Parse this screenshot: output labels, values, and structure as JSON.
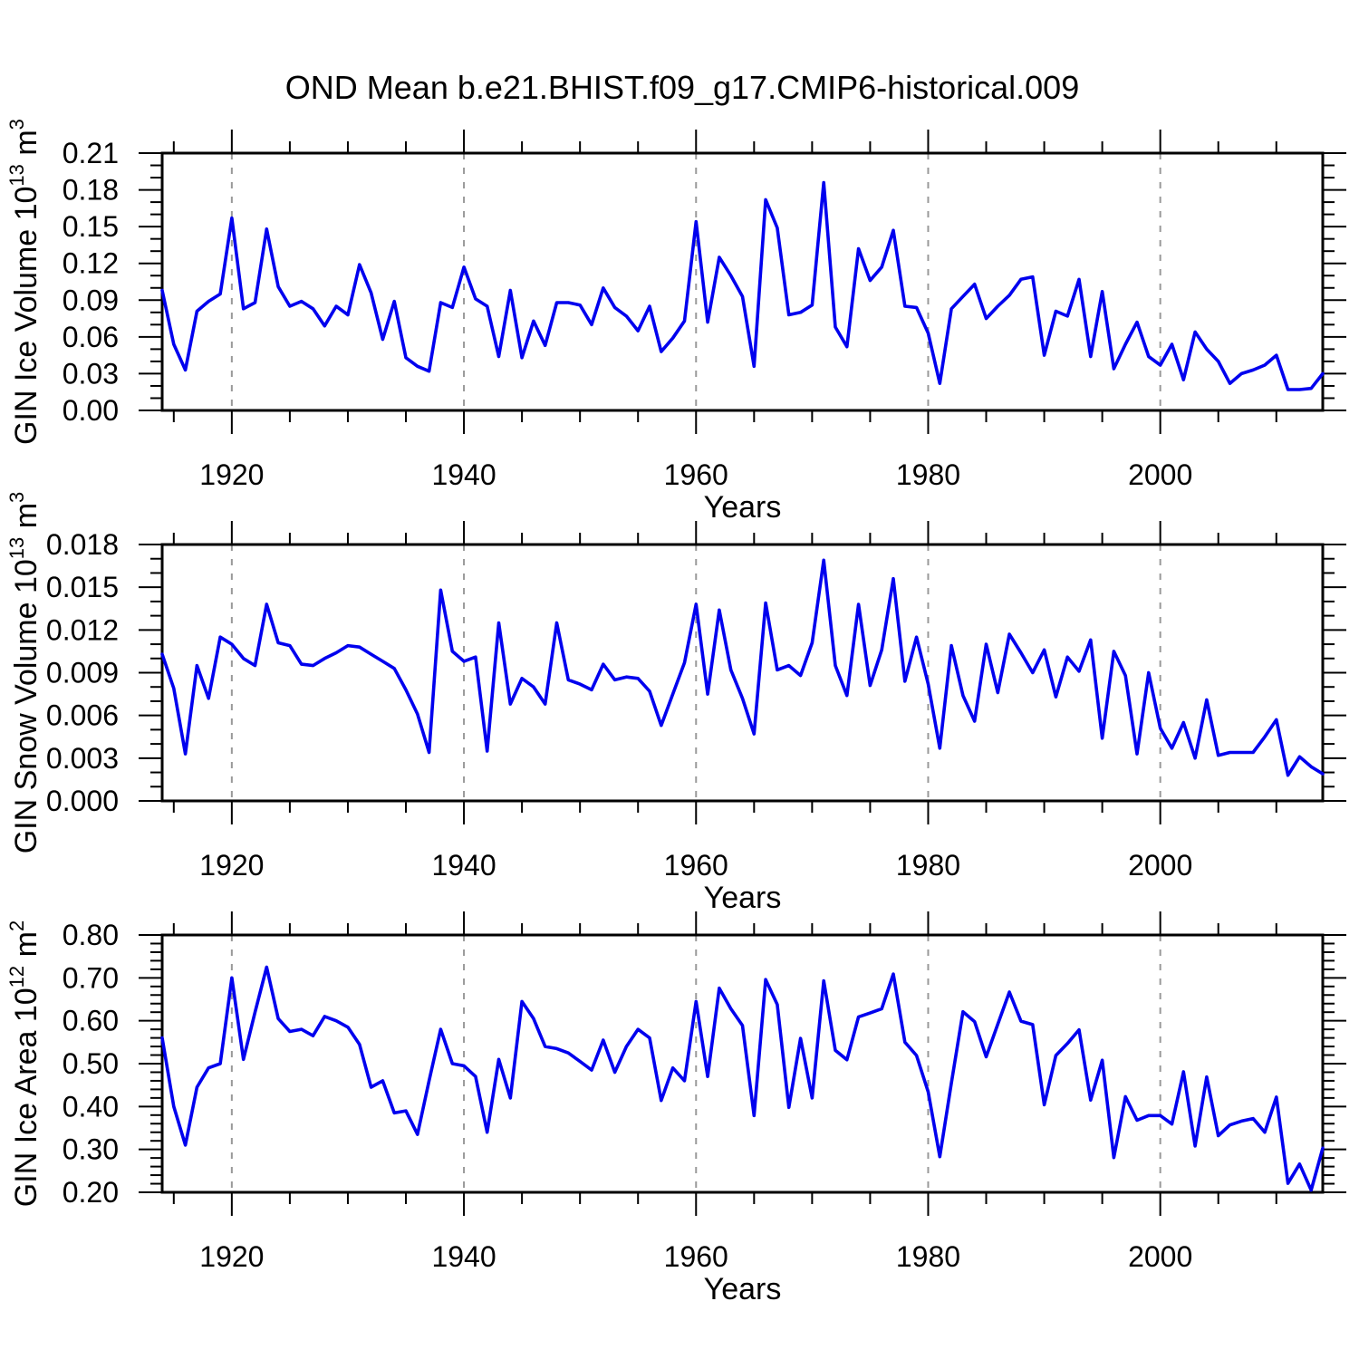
{
  "chart_data": {
    "type": "line",
    "title": "OND Mean b.e21.BHIST.f09_g17.CMIP6-historical.009",
    "line_color": "#0000ee",
    "grid_color": "#999999",
    "axis_color": "#000000",
    "x_axis": {
      "label": "Years",
      "range": [
        1914,
        2014
      ],
      "major_ticks": [
        1920,
        1940,
        1960,
        1980,
        2000
      ],
      "major_tick_labels": [
        "1920",
        "1940",
        "1960",
        "1980",
        "2000"
      ],
      "minor_tick_step": 5,
      "gridlines": "dashed vertical at major ticks"
    },
    "years": [
      1914,
      1915,
      1916,
      1917,
      1918,
      1919,
      1920,
      1921,
      1922,
      1923,
      1924,
      1925,
      1926,
      1927,
      1928,
      1929,
      1930,
      1931,
      1932,
      1933,
      1934,
      1935,
      1936,
      1937,
      1938,
      1939,
      1940,
      1941,
      1942,
      1943,
      1944,
      1945,
      1946,
      1947,
      1948,
      1949,
      1950,
      1951,
      1952,
      1953,
      1954,
      1955,
      1956,
      1957,
      1958,
      1959,
      1960,
      1961,
      1962,
      1963,
      1964,
      1965,
      1966,
      1967,
      1968,
      1969,
      1970,
      1971,
      1972,
      1973,
      1974,
      1975,
      1976,
      1977,
      1978,
      1979,
      1980,
      1981,
      1982,
      1983,
      1984,
      1985,
      1986,
      1987,
      1988,
      1989,
      1990,
      1991,
      1992,
      1993,
      1994,
      1995,
      1996,
      1997,
      1998,
      1999,
      2000,
      2001,
      2002,
      2003,
      2004,
      2005,
      2006,
      2007,
      2008,
      2009,
      2010,
      2011,
      2012,
      2013,
      2014
    ],
    "panels": [
      {
        "ylabel_plain": "GIN Ice Volume 10^13 m^3",
        "ylabel_parts": [
          {
            "text": "GIN Ice Volume 10"
          },
          {
            "text": "13",
            "sup": true
          },
          {
            "text": " m"
          },
          {
            "text": "3",
            "sup": true
          }
        ],
        "xlabel": "Years",
        "ylim": [
          0,
          0.21
        ],
        "ytick_values": [
          0.0,
          0.03,
          0.06,
          0.09,
          0.12,
          0.15,
          0.18,
          0.21
        ],
        "ytick_labels": [
          "0.00",
          "0.03",
          "0.06",
          "0.09",
          "0.12",
          "0.15",
          "0.18",
          "0.21"
        ],
        "yminor_step": 0.01,
        "values": [
          0.098,
          0.054,
          0.033,
          0.081,
          0.089,
          0.095,
          0.157,
          0.083,
          0.088,
          0.148,
          0.101,
          0.085,
          0.089,
          0.083,
          0.069,
          0.085,
          0.078,
          0.119,
          0.096,
          0.058,
          0.089,
          0.043,
          0.036,
          0.032,
          0.088,
          0.084,
          0.117,
          0.091,
          0.085,
          0.044,
          0.098,
          0.043,
          0.073,
          0.053,
          0.088,
          0.088,
          0.086,
          0.07,
          0.1,
          0.084,
          0.077,
          0.065,
          0.085,
          0.048,
          0.059,
          0.073,
          0.154,
          0.072,
          0.125,
          0.11,
          0.093,
          0.036,
          0.172,
          0.149,
          0.078,
          0.08,
          0.086,
          0.186,
          0.068,
          0.052,
          0.132,
          0.106,
          0.117,
          0.147,
          0.085,
          0.084,
          0.063,
          0.022,
          0.083,
          0.093,
          0.103,
          0.075,
          0.085,
          0.094,
          0.107,
          0.109,
          0.045,
          0.081,
          0.077,
          0.107,
          0.044,
          0.097,
          0.034,
          0.054,
          0.072,
          0.044,
          0.037,
          0.054,
          0.025,
          0.064,
          0.05,
          0.04,
          0.022,
          0.03,
          0.033,
          0.037,
          0.045,
          0.017,
          0.017,
          0.018,
          0.03
        ]
      },
      {
        "ylabel_plain": "GIN Snow Volume 10^13 m^3",
        "ylabel_parts": [
          {
            "text": "GIN Snow Volume 10"
          },
          {
            "text": "13",
            "sup": true
          },
          {
            "text": " m"
          },
          {
            "text": "3",
            "sup": true
          }
        ],
        "xlabel": "Years",
        "ylim": [
          0,
          0.018
        ],
        "ytick_values": [
          0.0,
          0.003,
          0.006,
          0.009,
          0.012,
          0.015,
          0.018
        ],
        "ytick_labels": [
          "0.000",
          "0.003",
          "0.006",
          "0.009",
          "0.012",
          "0.015",
          "0.018"
        ],
        "yminor_step": 0.001,
        "values": [
          0.0103,
          0.0079,
          0.0033,
          0.0095,
          0.0072,
          0.0115,
          0.011,
          0.01,
          0.0095,
          0.0138,
          0.0111,
          0.0109,
          0.0096,
          0.0095,
          0.01,
          0.0104,
          0.0109,
          0.0108,
          0.0103,
          0.0098,
          0.0093,
          0.0078,
          0.0061,
          0.0034,
          0.0148,
          0.0105,
          0.0098,
          0.0101,
          0.0035,
          0.0125,
          0.0068,
          0.0086,
          0.008,
          0.0068,
          0.0125,
          0.0085,
          0.0082,
          0.0078,
          0.0096,
          0.0085,
          0.0087,
          0.0086,
          0.0077,
          0.0053,
          0.0075,
          0.0097,
          0.0138,
          0.0075,
          0.0134,
          0.0092,
          0.0072,
          0.0047,
          0.0139,
          0.0092,
          0.0095,
          0.0088,
          0.0111,
          0.0169,
          0.0095,
          0.0074,
          0.0138,
          0.0081,
          0.0106,
          0.0156,
          0.0084,
          0.0115,
          0.0082,
          0.0037,
          0.0109,
          0.0074,
          0.0056,
          0.011,
          0.0076,
          0.0117,
          0.0104,
          0.009,
          0.0106,
          0.0073,
          0.0101,
          0.0091,
          0.0113,
          0.0044,
          0.0105,
          0.0088,
          0.0033,
          0.009,
          0.0051,
          0.0037,
          0.0055,
          0.003,
          0.0071,
          0.0032,
          0.0034,
          0.0034,
          0.0034,
          0.0045,
          0.0057,
          0.0018,
          0.0031,
          0.0024,
          0.0019
        ]
      },
      {
        "ylabel_plain": "GIN Ice Area 10^12 m^2",
        "ylabel_parts": [
          {
            "text": "GIN Ice Area 10"
          },
          {
            "text": "12",
            "sup": true
          },
          {
            "text": " m"
          },
          {
            "text": "2",
            "sup": true
          }
        ],
        "xlabel": "Years",
        "ylim": [
          0.2,
          0.8
        ],
        "ytick_values": [
          0.2,
          0.3,
          0.4,
          0.5,
          0.6,
          0.7,
          0.8
        ],
        "ytick_labels": [
          "0.20",
          "0.30",
          "0.40",
          "0.50",
          "0.60",
          "0.70",
          "0.80"
        ],
        "yminor_step": 0.02,
        "values": [
          0.56,
          0.4,
          0.31,
          0.445,
          0.49,
          0.5,
          0.7,
          0.51,
          0.62,
          0.725,
          0.605,
          0.575,
          0.58,
          0.565,
          0.61,
          0.6,
          0.585,
          0.545,
          0.445,
          0.46,
          0.385,
          0.39,
          0.335,
          0.46,
          0.58,
          0.5,
          0.495,
          0.47,
          0.34,
          0.51,
          0.42,
          0.645,
          0.605,
          0.54,
          0.535,
          0.525,
          0.505,
          0.485,
          0.555,
          0.48,
          0.54,
          0.58,
          0.56,
          0.414,
          0.49,
          0.46,
          0.645,
          0.47,
          0.676,
          0.628,
          0.589,
          0.379,
          0.696,
          0.638,
          0.398,
          0.559,
          0.42,
          0.693,
          0.531,
          0.509,
          0.609,
          0.618,
          0.628,
          0.709,
          0.55,
          0.519,
          0.434,
          0.283,
          0.455,
          0.621,
          0.598,
          0.516,
          0.592,
          0.667,
          0.599,
          0.591,
          0.404,
          0.519,
          0.547,
          0.579,
          0.415,
          0.508,
          0.281,
          0.423,
          0.368,
          0.379,
          0.379,
          0.359,
          0.481,
          0.308,
          0.469,
          0.332,
          0.357,
          0.366,
          0.372,
          0.34,
          0.422,
          0.221,
          0.266,
          0.205,
          0.303
        ]
      }
    ]
  }
}
